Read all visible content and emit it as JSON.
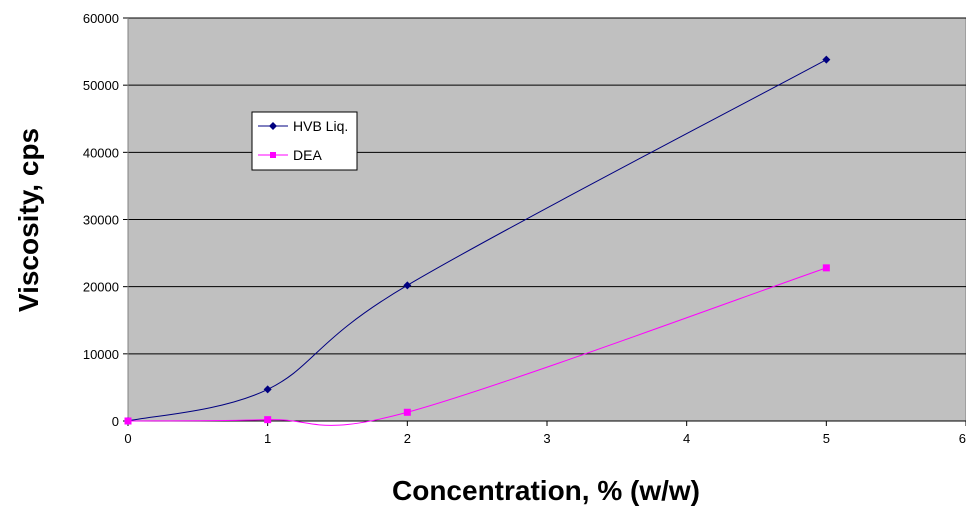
{
  "chart_data": {
    "type": "line",
    "title": "",
    "xlabel": "Concentration, % (w/w)",
    "ylabel": "Viscosity, cps",
    "xlim": [
      0,
      6
    ],
    "ylim": [
      0,
      60000
    ],
    "x_ticks": [
      "0",
      "1",
      "2",
      "3",
      "4",
      "5",
      "6"
    ],
    "y_ticks": [
      "0",
      "10000",
      "20000",
      "30000",
      "40000",
      "50000",
      "60000"
    ],
    "grid": "horizontal",
    "legend_position": "upper-left inside plot",
    "plot_background": "#c0c0c0",
    "series": [
      {
        "name": "HVB Liq.",
        "color": "#000080",
        "marker": "diamond",
        "x": [
          0,
          1,
          2,
          5
        ],
        "y": [
          0,
          4700,
          20200,
          53800
        ]
      },
      {
        "name": "DEA",
        "color": "#ff00ff",
        "marker": "square",
        "x": [
          0,
          1,
          2,
          5
        ],
        "y": [
          0,
          200,
          1300,
          22800
        ]
      }
    ]
  }
}
